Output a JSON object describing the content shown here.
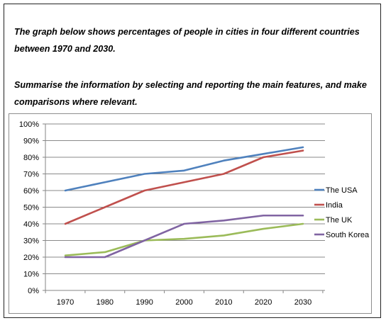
{
  "prompt": "The graph below shows percentages of people in cities in four different countries between 1970 and 2030.",
  "instruction": "Summarise the information by selecting and reporting the main features, and make comparisons where relevant.",
  "chart_data": {
    "type": "line",
    "x": [
      1970,
      1980,
      1990,
      2000,
      2010,
      2020,
      2030
    ],
    "x_tick_labels": [
      "1970",
      "1980",
      "1990",
      "2000",
      "2010",
      "2020",
      "2030"
    ],
    "y_tick_labels": [
      "0%",
      "10%",
      "20%",
      "30%",
      "40%",
      "50%",
      "60%",
      "70%",
      "80%",
      "90%",
      "100%"
    ],
    "ylim": [
      0,
      100
    ],
    "grid": true,
    "legend_position": "right",
    "series": [
      {
        "name": "The USA",
        "color": "#4f81bd",
        "values": [
          60,
          65,
          70,
          72,
          78,
          82,
          86
        ]
      },
      {
        "name": "India",
        "color": "#c0504d",
        "values": [
          40,
          50,
          60,
          65,
          70,
          80,
          84
        ]
      },
      {
        "name": "The UK",
        "color": "#9bbb59",
        "values": [
          21,
          23,
          30,
          31,
          33,
          37,
          40
        ]
      },
      {
        "name": "South Korea",
        "color": "#8064a2",
        "values": [
          20,
          20,
          30,
          40,
          42,
          45,
          45
        ]
      }
    ]
  }
}
